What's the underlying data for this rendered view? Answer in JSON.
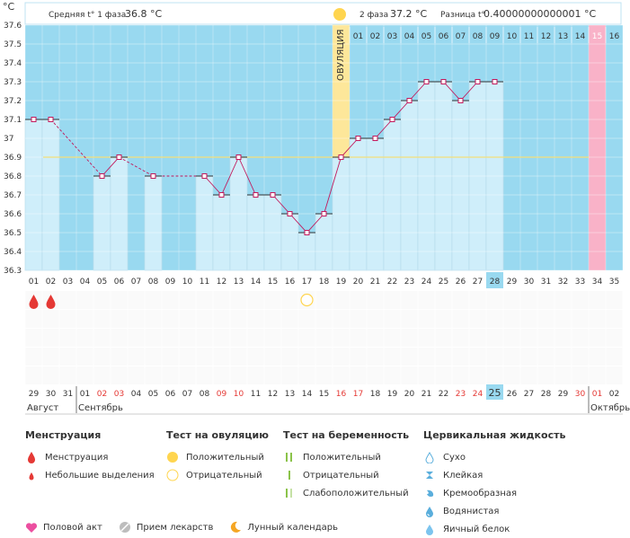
{
  "header": {
    "y_unit": "°C",
    "phase1_label": "Средняя t° 1 фаза",
    "phase1_value": "36.8 °C",
    "phase2_label": "2 фаза",
    "phase2_value": "37.2 °C",
    "diff_label": "Разница t°",
    "diff_value": "0.40000000000001 °C"
  },
  "ovulation_label": "ОВУЛЯЦИЯ",
  "colors": {
    "sky": "#99d9f0",
    "bar_fill": "#cfeefa",
    "bar_stroke": "#8cc7e0",
    "line": "#c2185b",
    "ovulation": "#fde79a",
    "pink_day": "#f9b2c8",
    "today": "#99d9f0",
    "coverline": "#f4e07a",
    "red": "#e53935",
    "yellow": "#ffd54f"
  },
  "chart_data": {
    "type": "bar",
    "title": "",
    "ylim": [
      36.3,
      37.6
    ],
    "y_ticks": [
      "36.3",
      "36.4",
      "36.5",
      "36.6",
      "36.7",
      "36.8",
      "36.9",
      "37",
      "37.1",
      "37.2",
      "37.3",
      "37.4",
      "37.5",
      "37.6"
    ],
    "cycle_days": [
      "01",
      "02",
      "03",
      "04",
      "05",
      "06",
      "07",
      "08",
      "09",
      "10",
      "11",
      "12",
      "13",
      "14",
      "15",
      "16",
      "17",
      "18",
      "19",
      "20",
      "21",
      "22",
      "23",
      "24",
      "25",
      "26",
      "27",
      "28",
      "29",
      "30",
      "31",
      "32",
      "33",
      "34",
      "35"
    ],
    "phase2_days": [
      "01",
      "02",
      "03",
      "04",
      "05",
      "06",
      "07",
      "08",
      "09",
      "10",
      "11",
      "12",
      "13",
      "14",
      "15",
      "16"
    ],
    "temperatures": [
      37.1,
      37.1,
      null,
      null,
      36.8,
      36.9,
      null,
      36.8,
      null,
      null,
      36.8,
      36.7,
      36.9,
      36.7,
      36.7,
      36.6,
      36.5,
      36.6,
      36.9,
      37.0,
      37.0,
      37.1,
      37.2,
      37.3,
      37.3,
      37.2,
      37.3,
      37.3,
      null,
      null,
      null,
      null,
      null,
      null,
      null
    ],
    "coverline": 36.9,
    "ovulation_day": 19,
    "highlight_day": 34,
    "today_day": 28,
    "menstruation_days": [
      1,
      2
    ],
    "ovulation_test_negative_day": 17,
    "calendar_dates": [
      "29",
      "30",
      "31",
      "01",
      "02",
      "03",
      "04",
      "05",
      "06",
      "07",
      "08",
      "09",
      "10",
      "11",
      "12",
      "13",
      "14",
      "15",
      "16",
      "17",
      "18",
      "19",
      "20",
      "21",
      "22",
      "23",
      "24",
      "25",
      "26",
      "27",
      "28",
      "29",
      "30",
      "01",
      "02"
    ],
    "calendar_red": [
      5,
      6,
      12,
      13,
      19,
      20,
      26,
      27,
      33,
      34
    ],
    "months": [
      {
        "name": "Август",
        "start": 1
      },
      {
        "name": "Сентябрь",
        "start": 4
      },
      {
        "name": "Октябрь",
        "start": 34
      }
    ]
  },
  "legend": {
    "menstruation": {
      "title": "Менструация",
      "items": [
        "Менструация",
        "Небольшие выделения"
      ]
    },
    "ovulation_test": {
      "title": "Тест на овуляцию",
      "items": [
        "Положительный",
        "Отрицательный"
      ]
    },
    "pregnancy_test": {
      "title": "Тест на беременность",
      "items": [
        "Положительный",
        "Отрицательный",
        "Слабоположительный"
      ]
    },
    "cervical": {
      "title": "Цервикальная жидкость",
      "items": [
        "Сухо",
        "Клейкая",
        "Кремообразная",
        "Водянистая",
        "Яичный белок"
      ]
    }
  },
  "bottom_items": [
    "Половой акт",
    "Прием лекарств",
    "Лунный календарь"
  ]
}
